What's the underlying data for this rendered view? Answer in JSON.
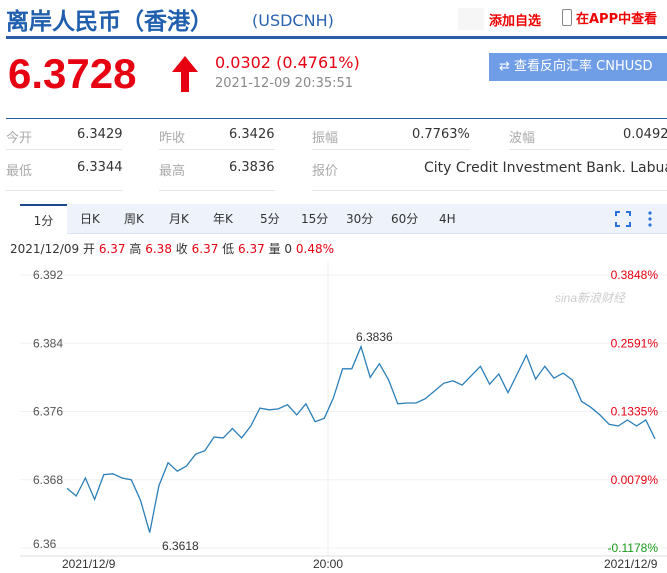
{
  "header": {
    "title": "离岸人民币（香港）",
    "code": "(USDCNH)",
    "add_watchlist": "添加自选",
    "view_in_app": "在APP中查看"
  },
  "quote": {
    "price": "6.3728",
    "direction": "up",
    "change": "0.0302 (0.4761%)",
    "timestamp": "2021-12-09 20:35:51",
    "reverse_button": "⇄ 查看反向汇率 CNHUSD",
    "up_color": "#e60012"
  },
  "stats": [
    {
      "label": "今开",
      "value": "6.3429"
    },
    {
      "label": "昨收",
      "value": "6.3426"
    },
    {
      "label": "振幅",
      "value": "0.7763%"
    },
    {
      "label": "波幅",
      "value": "0.0492"
    },
    {
      "label": "最低",
      "value": "6.3344"
    },
    {
      "label": "最高",
      "value": "6.3836"
    },
    {
      "label": "报价",
      "value": "City Credit Investment Bank. Labuan"
    }
  ],
  "tabs": [
    "1分",
    "日K",
    "周K",
    "月K",
    "年K",
    "5分",
    "15分",
    "30分",
    "60分",
    "4H"
  ],
  "active_tab": "1分",
  "ohlc": {
    "date": "2021/12/09",
    "open_label": "开",
    "open": "6.37",
    "high_label": "高",
    "high": "6.38",
    "close_label": "收",
    "close": "6.37",
    "low_label": "低",
    "low": "6.37",
    "vol_label": "量",
    "vol": "0",
    "pct": "0.48%"
  },
  "chart_data": {
    "type": "line",
    "yticks": [
      "6.392",
      "6.384",
      "6.376",
      "6.368",
      "6.36"
    ],
    "ylim": [
      6.36,
      6.392
    ],
    "pct_ticks": [
      "0.3848%",
      "0.2591%",
      "0.1335%",
      "0.0079%",
      "-0.1178%"
    ],
    "xticks": [
      "2021/12/9",
      "20:00",
      "2021/12/9"
    ],
    "high_label": "6.3836",
    "low_label": "6.3618",
    "watermark": "sina新浪财经",
    "values": [
      6.367,
      6.3661,
      6.3682,
      6.3657,
      6.3686,
      6.3687,
      6.3682,
      6.368,
      6.3656,
      6.3618,
      6.3673,
      6.37,
      6.369,
      6.3696,
      6.371,
      6.3714,
      6.373,
      6.3729,
      6.374,
      6.3729,
      6.3743,
      6.3764,
      6.3762,
      6.3763,
      6.3768,
      6.3756,
      6.3769,
      6.3748,
      6.3752,
      6.3776,
      6.381,
      6.381,
      6.3836,
      6.38,
      6.3816,
      6.3797,
      6.3769,
      6.377,
      6.377,
      6.3775,
      6.3784,
      6.3793,
      6.3796,
      6.3791,
      6.3802,
      6.3813,
      6.3792,
      6.3804,
      6.3782,
      6.3804,
      6.3826,
      6.3798,
      6.3813,
      6.3799,
      6.3805,
      6.3797,
      6.3772,
      6.3765,
      6.3756,
      6.3745,
      6.3743,
      6.375,
      6.3743,
      6.375,
      6.3728
    ],
    "line_color": "#2b7fb8",
    "grid": true
  }
}
